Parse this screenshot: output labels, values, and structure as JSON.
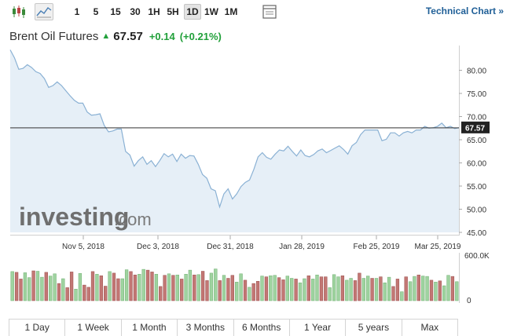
{
  "toolbar": {
    "icons": [
      "candlestick-icon",
      "area-chart-icon"
    ],
    "ranges": [
      "1",
      "5",
      "15",
      "30",
      "1H",
      "5H",
      "1D",
      "1W",
      "1M"
    ],
    "active_range": "1D",
    "settings_icon": "chart-settings-icon",
    "technical_link": "Technical Chart »"
  },
  "quote": {
    "name": "Brent Oil Futures",
    "price": "67.57",
    "change": "+0.14",
    "change_pct": "(+0.21%)"
  },
  "watermark": {
    "main": "investing",
    "suffix": ".com"
  },
  "colors": {
    "line": "#8ab1d4",
    "area": "#e6eff7",
    "up": "#9fd3a0",
    "down": "#c27774",
    "link": "#1f5f97",
    "positive": "#21a03a"
  },
  "chart_data": {
    "type": "area",
    "price_label": "67.57",
    "y_ticks": [
      "80.00",
      "75.00",
      "70.00",
      "65.00",
      "60.00",
      "55.00",
      "50.00",
      "45.00"
    ],
    "ylim": [
      45,
      85
    ],
    "x_ticks": [
      "Nov 5, 2018",
      "Dec 3, 2018",
      "Dec 31, 2018",
      "Jan 28, 2019",
      "Feb 25, 2019",
      "Mar 25, 2019"
    ],
    "volume_ticks": [
      "600.0K",
      "0"
    ],
    "values": [
      84.4,
      82.7,
      80.2,
      80.4,
      81.2,
      80.6,
      79.7,
      79.3,
      78.2,
      76.3,
      76.7,
      77.5,
      76.7,
      75.6,
      74.5,
      73.5,
      72.9,
      72.9,
      71.0,
      70.3,
      70.4,
      70.6,
      68.1,
      66.7,
      66.9,
      67.3,
      67.3,
      62.5,
      61.7,
      59.3,
      60.5,
      61.3,
      59.7,
      60.5,
      59.2,
      60.5,
      62.0,
      61.3,
      61.9,
      60.3,
      61.9,
      61.0,
      61.6,
      61.5,
      59.7,
      57.5,
      56.7,
      54.4,
      54.0,
      50.5,
      53.3,
      54.4,
      52.2,
      53.3,
      54.9,
      55.8,
      56.3,
      58.6,
      61.3,
      62.2,
      61.2,
      60.8,
      61.9,
      62.8,
      62.6,
      63.6,
      62.5,
      61.5,
      62.8,
      61.6,
      61.3,
      61.8,
      62.6,
      63.0,
      62.2,
      62.7,
      63.2,
      63.7,
      62.9,
      61.9,
      63.7,
      64.4,
      66.1,
      67.1,
      67.1,
      67.1,
      67.1,
      64.8,
      65.1,
      66.5,
      66.5,
      65.8,
      66.5,
      66.8,
      66.5,
      67.1,
      67.1,
      67.9,
      67.5,
      67.6,
      67.9,
      68.6,
      67.6,
      67.9,
      67.4,
      67.6
    ],
    "volumes": [
      390,
      380,
      290,
      375,
      310,
      400,
      395,
      315,
      380,
      330,
      360,
      230,
      295,
      175,
      385,
      155,
      365,
      210,
      180,
      390,
      355,
      335,
      195,
      390,
      370,
      295,
      295,
      415,
      390,
      345,
      355,
      420,
      410,
      385,
      355,
      190,
      340,
      360,
      340,
      345,
      290,
      355,
      410,
      345,
      350,
      395,
      270,
      370,
      425,
      270,
      340,
      300,
      340,
      250,
      360,
      275,
      180,
      230,
      260,
      330,
      320,
      335,
      340,
      310,
      280,
      330,
      300,
      290,
      240,
      295,
      335,
      290,
      345,
      320,
      320,
      175,
      350,
      320,
      335,
      275,
      300,
      270,
      370,
      300,
      330,
      300,
      300,
      320,
      240,
      315,
      190,
      290,
      120,
      320,
      255,
      325,
      345,
      330,
      325,
      275,
      250,
      265,
      200,
      340,
      325,
      255
    ],
    "volume_up": [
      1,
      0,
      0,
      1,
      1,
      0,
      1,
      1,
      0,
      1,
      1,
      0,
      1,
      0,
      0,
      1,
      1,
      0,
      0,
      0,
      1,
      0,
      0,
      1,
      0,
      0,
      1,
      1,
      0,
      0,
      1,
      1,
      0,
      0,
      1,
      0,
      0,
      1,
      0,
      1,
      0,
      1,
      1,
      0,
      1,
      0,
      0,
      1,
      1,
      0,
      1,
      0,
      0,
      1,
      1,
      0,
      1,
      0,
      0,
      1,
      0,
      1,
      1,
      0,
      0,
      1,
      1,
      0,
      1,
      1,
      0,
      1,
      1,
      0,
      0,
      1,
      1,
      1,
      0,
      1,
      1,
      0,
      0,
      1,
      1,
      0,
      1,
      0,
      1,
      1,
      0,
      0,
      1,
      0,
      1,
      1,
      0,
      1,
      1,
      0,
      1,
      0,
      1,
      1,
      0,
      1
    ]
  },
  "footer_tabs": [
    "1 Day",
    "1 Week",
    "1 Month",
    "3 Months",
    "6 Months",
    "1 Year",
    "5 years",
    "Max"
  ]
}
